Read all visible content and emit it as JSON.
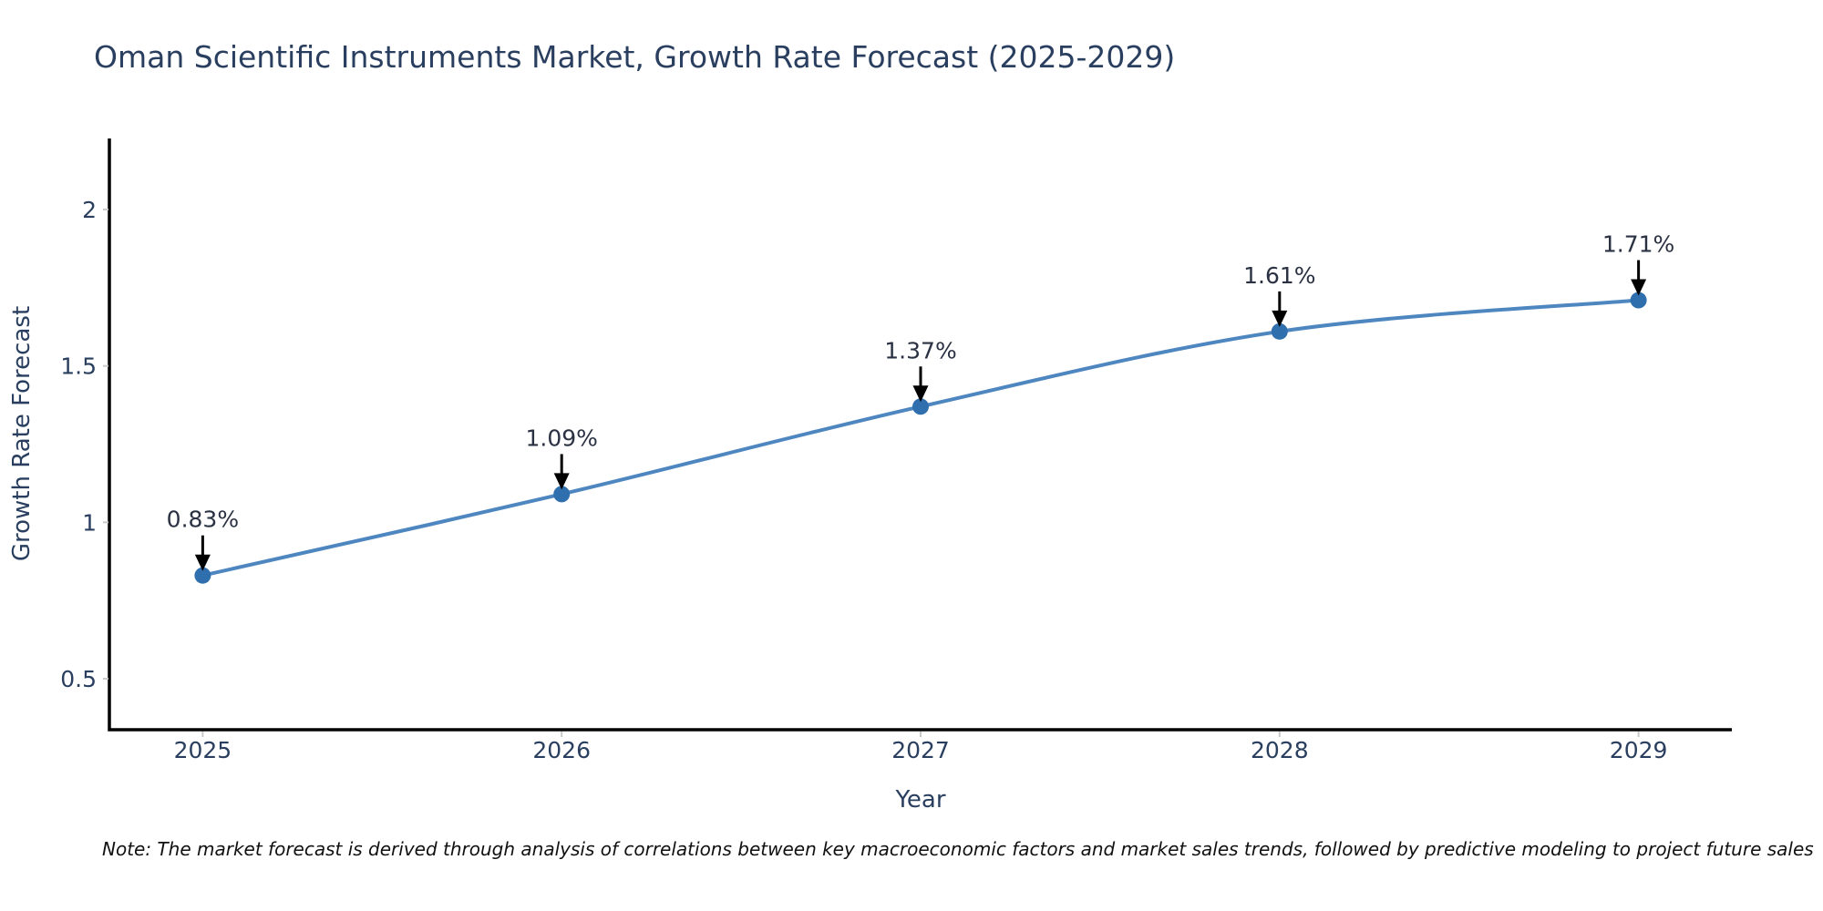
{
  "header": {
    "title": "Oman Scientific Instruments Market, Growth Rate Forecast (2025-2029)"
  },
  "footer": {
    "note": "Note: The market forecast is derived through analysis of correlations between key macroeconomic factors and market sales trends, followed by predictive modeling to project future sales"
  },
  "chart_data": {
    "type": "line",
    "title": "Oman Scientific Instruments Market, Growth Rate Forecast (2025-2029)",
    "x": [
      2025,
      2026,
      2027,
      2028,
      2029
    ],
    "series": [
      {
        "name": "Growth Rate Forecast",
        "values": [
          0.83,
          1.09,
          1.37,
          1.61,
          1.71
        ]
      }
    ],
    "point_labels": [
      "0.83%",
      "1.09%",
      "1.37%",
      "1.61%",
      "1.71%"
    ],
    "xlabel": "Year",
    "ylabel": "Growth Rate Forecast",
    "xticks": [
      "2025",
      "2026",
      "2027",
      "2028",
      "2029"
    ],
    "yticks": [
      0.5,
      1,
      1.5,
      2
    ],
    "xlim": [
      2024.74,
      2029.26
    ],
    "ylim": [
      0.337,
      2.227
    ],
    "grid": false,
    "legend": "none",
    "colors": {
      "line": "#4e86c0",
      "marker": "#2f6fad",
      "axis": "#000000",
      "tick_text": "#2a3f5f",
      "annotation_text": "#2a3142",
      "arrow": "#000000",
      "tick_mark": "#c9c9c9"
    }
  }
}
